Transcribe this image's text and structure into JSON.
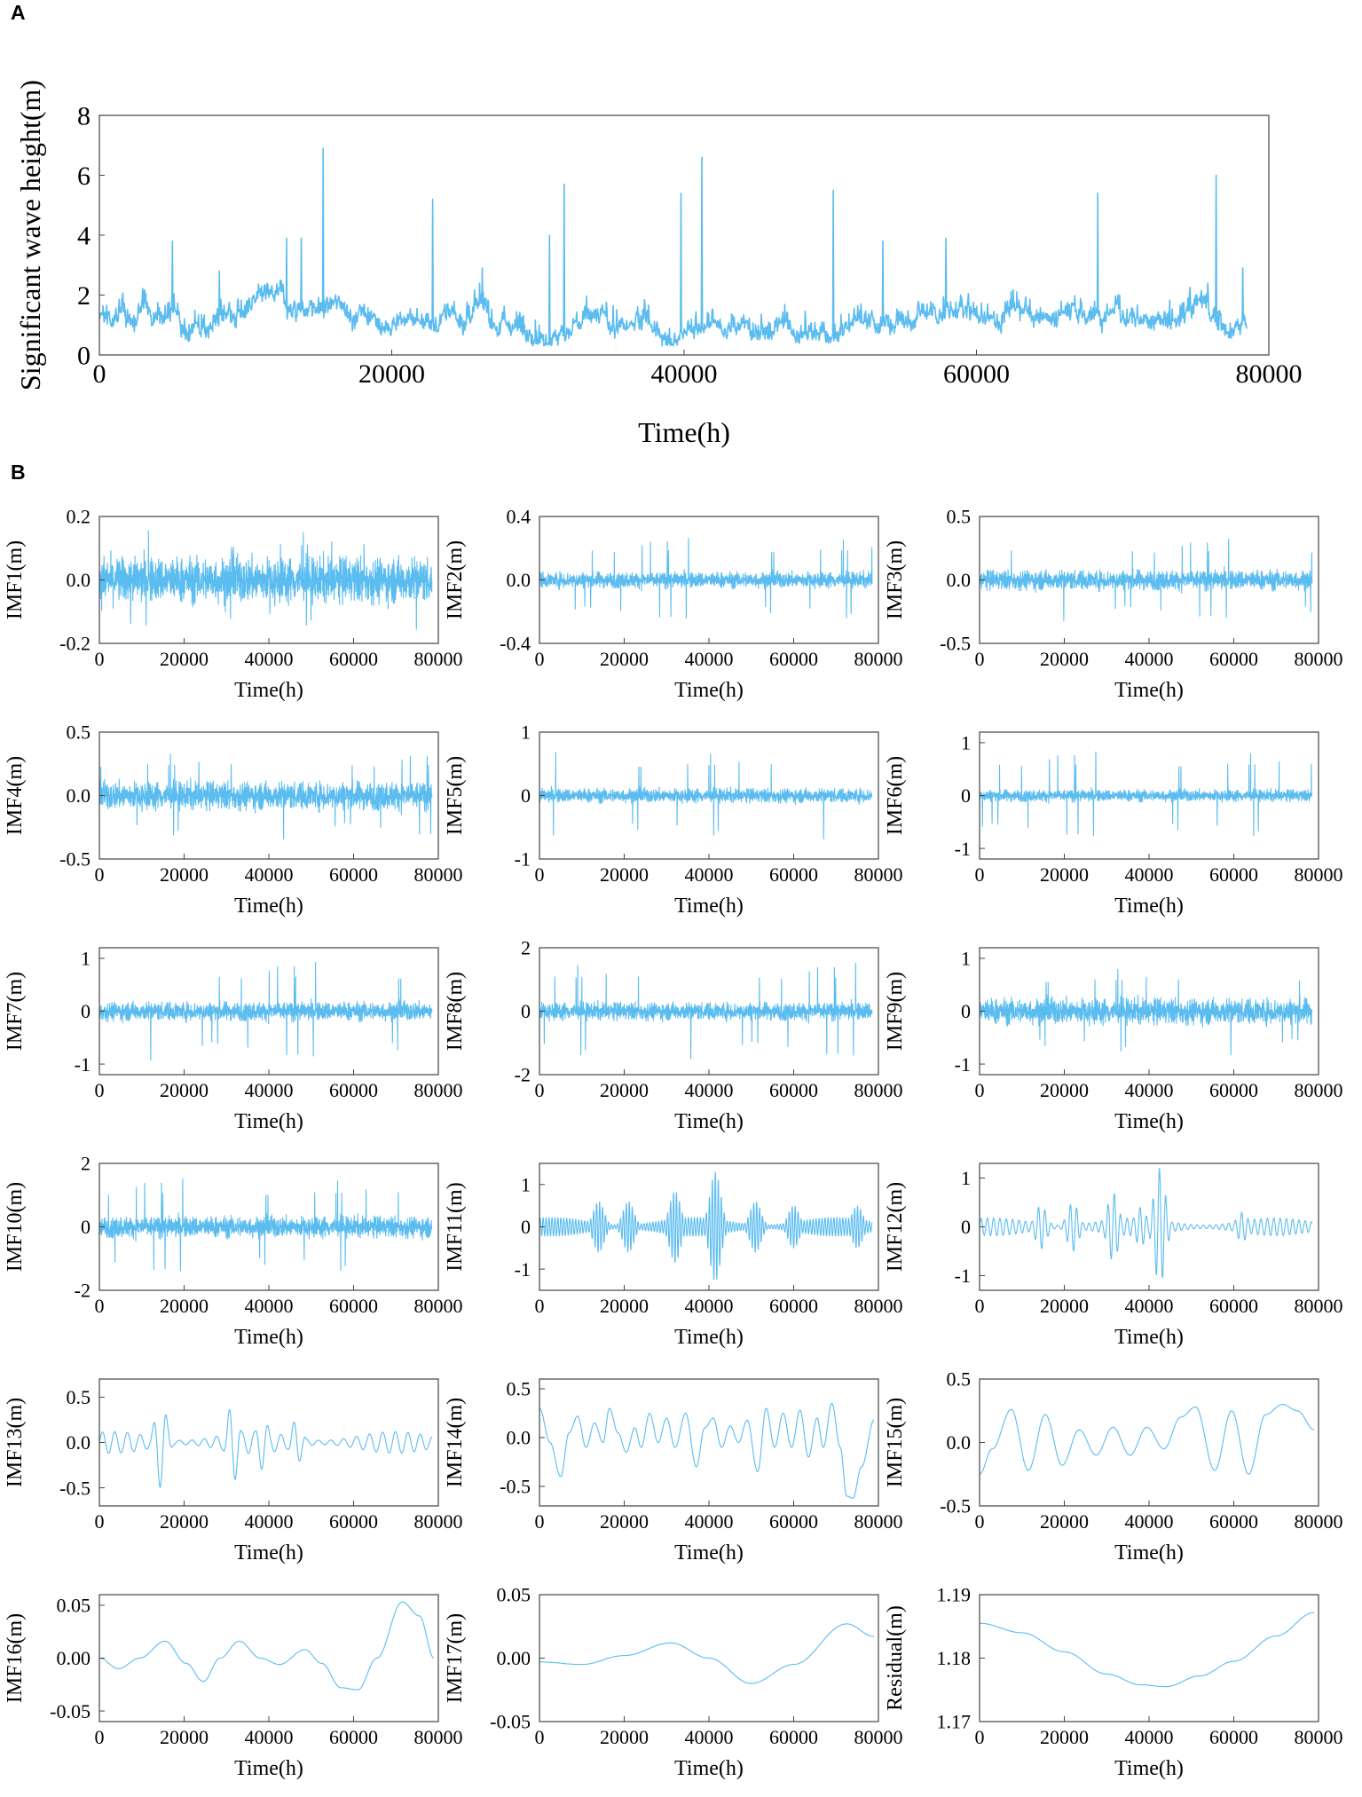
{
  "figure": {
    "panel_a_letter": "A",
    "panel_b_letter": "B",
    "line_color": "#5bbcf0"
  },
  "chart_data": [
    {
      "id": "main",
      "type": "line",
      "title": "",
      "xlabel": "Time(h)",
      "ylabel": "Significant wave height(m)",
      "xlim": [
        0,
        80000
      ],
      "ylim": [
        0,
        8
      ],
      "xticks": [
        "0",
        "20000",
        "40000",
        "60000",
        "80000"
      ],
      "yticks": [
        "0",
        "2",
        "4",
        "6",
        "8"
      ],
      "series": [
        {
          "name": "Significant wave height",
          "base": 1.2,
          "noise": 0.55,
          "span": 78500,
          "peaks": [
            [
              5000,
              3.8
            ],
            [
              8200,
              2.8
            ],
            [
              12800,
              3.9
            ],
            [
              13800,
              3.9
            ],
            [
              15300,
              6.9
            ],
            [
              22800,
              5.2
            ],
            [
              26200,
              2.9
            ],
            [
              30800,
              4.0
            ],
            [
              31800,
              5.7
            ],
            [
              39800,
              5.4
            ],
            [
              41200,
              6.6
            ],
            [
              50200,
              5.5
            ],
            [
              53600,
              3.8
            ],
            [
              57900,
              3.9
            ],
            [
              68300,
              5.4
            ],
            [
              76400,
              6.0
            ],
            [
              78200,
              2.9
            ]
          ]
        }
      ]
    },
    {
      "id": "imf1",
      "type": "line",
      "xlabel": "Time(h)",
      "ylabel": "IMF1(m)",
      "xlim": [
        0,
        80000
      ],
      "ylim": [
        -0.2,
        0.2
      ],
      "xticks": [
        "0",
        "20000",
        "40000",
        "60000",
        "80000"
      ],
      "yticks": [
        "-0.2",
        "0.0",
        "0.2"
      ],
      "series": [
        {
          "name": "IMF1",
          "kind": "noise",
          "amp": 0.065,
          "peak": 0.16,
          "span": 78500
        }
      ]
    },
    {
      "id": "imf2",
      "type": "line",
      "xlabel": "Time(h)",
      "ylabel": "IMF2(m)",
      "xlim": [
        0,
        80000
      ],
      "ylim": [
        -0.4,
        0.4
      ],
      "xticks": [
        "0",
        "20000",
        "40000",
        "60000",
        "80000"
      ],
      "yticks": [
        "-0.4",
        "0.0",
        "0.4"
      ],
      "series": [
        {
          "name": "IMF2",
          "kind": "noise",
          "amp": 0.045,
          "peak": 0.27,
          "span": 78500
        }
      ]
    },
    {
      "id": "imf3",
      "type": "line",
      "xlabel": "Time(h)",
      "ylabel": "IMF3(m)",
      "xlim": [
        0,
        80000
      ],
      "ylim": [
        -0.5,
        0.5
      ],
      "xticks": [
        "0",
        "20000",
        "40000",
        "60000",
        "80000"
      ],
      "yticks": [
        "-0.5",
        "0.0",
        "0.5"
      ],
      "series": [
        {
          "name": "IMF3",
          "kind": "noise",
          "amp": 0.07,
          "peak": 0.33,
          "span": 78500
        }
      ]
    },
    {
      "id": "imf4",
      "type": "line",
      "xlabel": "Time(h)",
      "ylabel": "IMF4(m)",
      "xlim": [
        0,
        80000
      ],
      "ylim": [
        -0.5,
        0.5
      ],
      "xticks": [
        "0",
        "20000",
        "40000",
        "60000",
        "80000"
      ],
      "yticks": [
        "-0.5",
        "0.0",
        "0.5"
      ],
      "series": [
        {
          "name": "IMF4",
          "kind": "noise",
          "amp": 0.1,
          "peak": 0.35,
          "span": 78500
        }
      ]
    },
    {
      "id": "imf5",
      "type": "line",
      "xlabel": "Time(h)",
      "ylabel": "IMF5(m)",
      "xlim": [
        0,
        80000
      ],
      "ylim": [
        -1,
        1
      ],
      "xticks": [
        "0",
        "20000",
        "40000",
        "60000",
        "80000"
      ],
      "yticks": [
        "-1",
        "0",
        "1"
      ],
      "series": [
        {
          "name": "IMF5",
          "kind": "noise",
          "amp": 0.1,
          "peak": 0.7,
          "span": 78500
        }
      ]
    },
    {
      "id": "imf6",
      "type": "line",
      "xlabel": "Time(h)",
      "ylabel": "IMF6(m)",
      "xlim": [
        0,
        80000
      ],
      "ylim": [
        -1.2,
        1.2
      ],
      "xticks": [
        "0",
        "20000",
        "40000",
        "60000",
        "80000"
      ],
      "yticks": [
        "-1",
        "0",
        "1"
      ],
      "series": [
        {
          "name": "IMF6",
          "kind": "noise",
          "amp": 0.1,
          "peak": 0.85,
          "span": 78500
        }
      ]
    },
    {
      "id": "imf7",
      "type": "line",
      "xlabel": "Time(h)",
      "ylabel": "IMF7(m)",
      "xlim": [
        0,
        80000
      ],
      "ylim": [
        -1.2,
        1.2
      ],
      "xticks": [
        "0",
        "20000",
        "40000",
        "60000",
        "80000"
      ],
      "yticks": [
        "-1",
        "0",
        "1"
      ],
      "series": [
        {
          "name": "IMF7",
          "kind": "noise",
          "amp": 0.16,
          "peak": 0.95,
          "span": 78500
        }
      ]
    },
    {
      "id": "imf8",
      "type": "line",
      "xlabel": "Time(h)",
      "ylabel": "IMF8(m)",
      "xlim": [
        0,
        80000
      ],
      "ylim": [
        -2,
        2
      ],
      "xticks": [
        "0",
        "20000",
        "40000",
        "60000",
        "80000"
      ],
      "yticks": [
        "-2",
        "0",
        "2"
      ],
      "series": [
        {
          "name": "IMF8",
          "kind": "noise",
          "amp": 0.25,
          "peak": 1.55,
          "span": 78500
        }
      ]
    },
    {
      "id": "imf9",
      "type": "line",
      "xlabel": "Time(h)",
      "ylabel": "IMF9(m)",
      "xlim": [
        0,
        80000
      ],
      "ylim": [
        -1.2,
        1.2
      ],
      "xticks": [
        "0",
        "20000",
        "40000",
        "60000",
        "80000"
      ],
      "yticks": [
        "-1",
        "0",
        "1"
      ],
      "series": [
        {
          "name": "IMF9",
          "kind": "noise",
          "amp": 0.22,
          "peak": 0.85,
          "span": 78500
        }
      ]
    },
    {
      "id": "imf10",
      "type": "line",
      "xlabel": "Time(h)",
      "ylabel": "IMF10(m)",
      "xlim": [
        0,
        80000
      ],
      "ylim": [
        -2,
        2
      ],
      "xticks": [
        "0",
        "20000",
        "40000",
        "60000",
        "80000"
      ],
      "yticks": [
        "-2",
        "0",
        "2"
      ],
      "series": [
        {
          "name": "IMF10",
          "kind": "noise",
          "amp": 0.3,
          "peak": 1.55,
          "span": 78500
        }
      ]
    },
    {
      "id": "imf11",
      "type": "line",
      "xlabel": "Time(h)",
      "ylabel": "IMF11(m)",
      "xlim": [
        0,
        80000
      ],
      "ylim": [
        -1.5,
        1.5
      ],
      "xticks": [
        "0",
        "20000",
        "40000",
        "60000",
        "80000"
      ],
      "yticks": [
        "-1",
        "0",
        "1"
      ],
      "series": [
        {
          "name": "IMF11",
          "kind": "packet",
          "period": 700,
          "amp": 0.22,
          "span": 78500,
          "bursts": [
            [
              14000,
              0.6
            ],
            [
              21000,
              0.6
            ],
            [
              32000,
              0.85
            ],
            [
              41500,
              1.3
            ],
            [
              51000,
              0.6
            ],
            [
              60000,
              0.5
            ],
            [
              75000,
              0.5
            ]
          ]
        }
      ]
    },
    {
      "id": "imf12",
      "type": "line",
      "xlabel": "Time(h)",
      "ylabel": "IMF12(m)",
      "xlim": [
        0,
        80000
      ],
      "ylim": [
        -1.3,
        1.3
      ],
      "xticks": [
        "0",
        "20000",
        "40000",
        "60000",
        "80000"
      ],
      "yticks": [
        "-1",
        "0",
        "1"
      ],
      "series": [
        {
          "name": "IMF12",
          "kind": "packet",
          "period": 1500,
          "amp": 0.18,
          "span": 78500,
          "bursts": [
            [
              14500,
              0.45
            ],
            [
              22000,
              0.5
            ],
            [
              31500,
              0.7
            ],
            [
              38000,
              0.4
            ],
            [
              42500,
              1.2
            ],
            [
              62000,
              0.3
            ]
          ]
        }
      ]
    },
    {
      "id": "imf13",
      "type": "line",
      "xlabel": "Time(h)",
      "ylabel": "IMF13(m)",
      "xlim": [
        0,
        80000
      ],
      "ylim": [
        -0.7,
        0.7
      ],
      "xticks": [
        "0",
        "20000",
        "40000",
        "60000",
        "80000"
      ],
      "yticks": [
        "-0.5",
        "0.0",
        "0.5"
      ],
      "series": [
        {
          "name": "IMF13",
          "kind": "packet",
          "period": 3000,
          "amp": 0.12,
          "span": 78500,
          "bursts": [
            [
              14500,
              0.5
            ],
            [
              31500,
              0.45
            ],
            [
              38500,
              0.3
            ],
            [
              46500,
              0.25
            ]
          ]
        }
      ]
    },
    {
      "id": "imf14",
      "type": "line",
      "xlabel": "Time(h)",
      "ylabel": "IMF14(m)",
      "xlim": [
        0,
        80000
      ],
      "ylim": [
        -0.7,
        0.6
      ],
      "xticks": [
        "0",
        "20000",
        "40000",
        "60000",
        "80000"
      ],
      "yticks": [
        "-0.5",
        "0.0",
        "0.5"
      ],
      "series": [
        {
          "name": "IMF14",
          "kind": "points",
          "span": 79000,
          "points": [
            [
              0,
              0.3
            ],
            [
              2500,
              -0.05
            ],
            [
              5000,
              -0.4
            ],
            [
              7000,
              0.05
            ],
            [
              9000,
              0.22
            ],
            [
              11000,
              -0.1
            ],
            [
              13000,
              0.15
            ],
            [
              15000,
              -0.05
            ],
            [
              16500,
              0.3
            ],
            [
              18500,
              0.05
            ],
            [
              20500,
              -0.15
            ],
            [
              22500,
              0.1
            ],
            [
              24000,
              -0.1
            ],
            [
              26000,
              0.25
            ],
            [
              28000,
              -0.05
            ],
            [
              30000,
              0.2
            ],
            [
              32000,
              -0.1
            ],
            [
              34500,
              0.25
            ],
            [
              37000,
              -0.3
            ],
            [
              39000,
              0.1
            ],
            [
              41000,
              0.2
            ],
            [
              43000,
              -0.1
            ],
            [
              45000,
              0.12
            ],
            [
              47000,
              -0.05
            ],
            [
              49000,
              0.18
            ],
            [
              51500,
              -0.35
            ],
            [
              53500,
              0.3
            ],
            [
              55500,
              -0.1
            ],
            [
              57500,
              0.25
            ],
            [
              59500,
              -0.1
            ],
            [
              61500,
              0.28
            ],
            [
              63500,
              -0.2
            ],
            [
              65500,
              0.2
            ],
            [
              67000,
              -0.1
            ],
            [
              69000,
              0.35
            ],
            [
              71000,
              -0.1
            ],
            [
              72500,
              -0.6
            ],
            [
              74000,
              -0.62
            ],
            [
              76000,
              -0.3
            ],
            [
              79000,
              0.18
            ]
          ]
        }
      ]
    },
    {
      "id": "imf15",
      "type": "line",
      "xlabel": "Time(h)",
      "ylabel": "IMF15(m)",
      "xlim": [
        0,
        80000
      ],
      "ylim": [
        -0.5,
        0.5
      ],
      "xticks": [
        "0",
        "20000",
        "40000",
        "60000",
        "80000"
      ],
      "yticks": [
        "-0.5",
        "0.0",
        "0.5"
      ],
      "series": [
        {
          "name": "IMF15",
          "kind": "points",
          "span": 79000,
          "points": [
            [
              0,
              -0.25
            ],
            [
              3000,
              -0.05
            ],
            [
              7500,
              0.26
            ],
            [
              11500,
              -0.22
            ],
            [
              15500,
              0.22
            ],
            [
              19500,
              -0.18
            ],
            [
              23500,
              0.1
            ],
            [
              27500,
              -0.1
            ],
            [
              31500,
              0.12
            ],
            [
              35500,
              -0.1
            ],
            [
              39500,
              0.12
            ],
            [
              43500,
              -0.05
            ],
            [
              47500,
              0.2
            ],
            [
              51000,
              0.28
            ],
            [
              55500,
              -0.22
            ],
            [
              59500,
              0.25
            ],
            [
              63500,
              -0.25
            ],
            [
              67500,
              0.22
            ],
            [
              71500,
              0.3
            ],
            [
              75000,
              0.25
            ],
            [
              79000,
              0.1
            ]
          ]
        }
      ]
    },
    {
      "id": "imf16",
      "type": "line",
      "xlabel": "Time(h)",
      "ylabel": "IMF16(m)",
      "xlim": [
        0,
        80000
      ],
      "ylim": [
        -0.06,
        0.06
      ],
      "xticks": [
        "0",
        "20000",
        "40000",
        "60000",
        "80000"
      ],
      "yticks": [
        "-0.05",
        "0.00",
        "0.05"
      ],
      "series": [
        {
          "name": "IMF16",
          "kind": "points",
          "span": 79000,
          "points": [
            [
              0,
              0.0
            ],
            [
              4500,
              -0.01
            ],
            [
              9500,
              0.0
            ],
            [
              15500,
              0.016
            ],
            [
              20500,
              -0.005
            ],
            [
              24500,
              -0.022
            ],
            [
              28500,
              0.0
            ],
            [
              33000,
              0.016
            ],
            [
              38000,
              0.0
            ],
            [
              42500,
              -0.006
            ],
            [
              48500,
              0.008
            ],
            [
              52500,
              -0.005
            ],
            [
              57000,
              -0.028
            ],
            [
              61000,
              -0.03
            ],
            [
              65500,
              0.0
            ],
            [
              71500,
              0.053
            ],
            [
              75500,
              0.04
            ],
            [
              79000,
              0.0
            ]
          ]
        }
      ]
    },
    {
      "id": "imf17",
      "type": "line",
      "xlabel": "Time(h)",
      "ylabel": "IMF17(m)",
      "xlim": [
        0,
        80000
      ],
      "ylim": [
        -0.05,
        0.05
      ],
      "xticks": [
        "0",
        "20000",
        "40000",
        "60000",
        "80000"
      ],
      "yticks": [
        "-0.05",
        "0.00",
        "0.05"
      ],
      "series": [
        {
          "name": "IMF17",
          "kind": "points",
          "span": 79000,
          "points": [
            [
              0,
              -0.003
            ],
            [
              10000,
              -0.005
            ],
            [
              20000,
              0.002
            ],
            [
              31000,
              0.012
            ],
            [
              40000,
              0.0
            ],
            [
              50000,
              -0.02
            ],
            [
              60000,
              -0.005
            ],
            [
              72500,
              0.027
            ],
            [
              79000,
              0.017
            ]
          ]
        }
      ]
    },
    {
      "id": "residual",
      "type": "line",
      "xlabel": "Time(h)",
      "ylabel": "Residual(m)",
      "xlim": [
        0,
        80000
      ],
      "ylim": [
        1.17,
        1.19
      ],
      "xticks": [
        "0",
        "20000",
        "40000",
        "60000",
        "80000"
      ],
      "yticks": [
        "1.17",
        "1.18",
        "1.19"
      ],
      "series": [
        {
          "name": "Residual",
          "kind": "points",
          "span": 79000,
          "points": [
            [
              0,
              1.1855
            ],
            [
              10000,
              1.184
            ],
            [
              20000,
              1.181
            ],
            [
              30000,
              1.1775
            ],
            [
              38000,
              1.1758
            ],
            [
              44000,
              1.1755
            ],
            [
              52000,
              1.1772
            ],
            [
              60000,
              1.1795
            ],
            [
              70000,
              1.1835
            ],
            [
              79000,
              1.1872
            ]
          ]
        }
      ]
    }
  ]
}
